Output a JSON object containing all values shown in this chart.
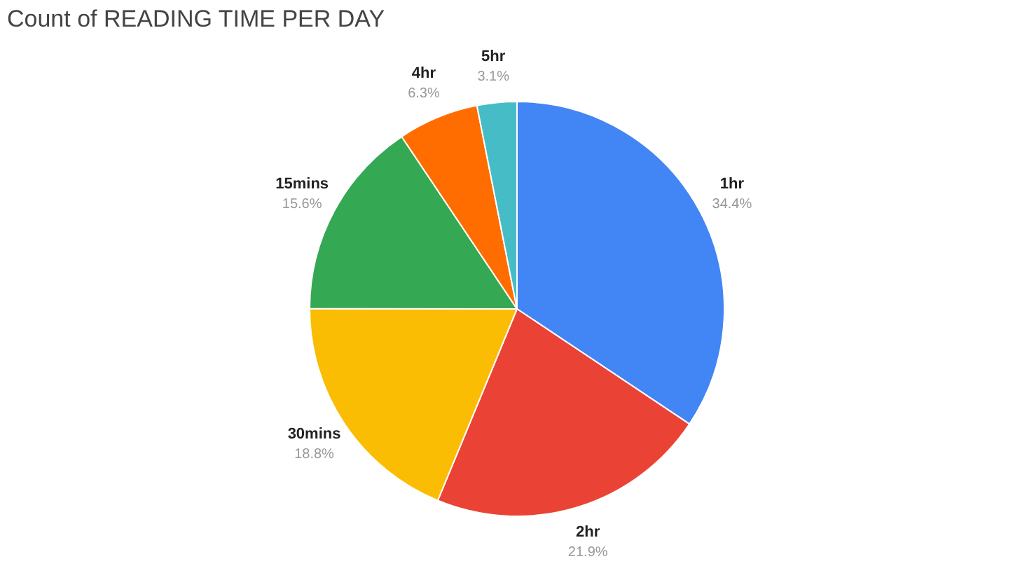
{
  "chart_data": {
    "type": "pie",
    "title": "Count of READING TIME PER DAY",
    "categories": [
      "1hr",
      "2hr",
      "30mins",
      "15mins",
      "4hr",
      "5hr"
    ],
    "values": [
      34.4,
      21.9,
      18.8,
      15.6,
      6.3,
      3.1
    ],
    "value_labels": [
      "34.4%",
      "21.9%",
      "18.8%",
      "15.6%",
      "6.3%",
      "3.1%"
    ],
    "colors": [
      "#4285f4",
      "#ea4335",
      "#fbbc04",
      "#34a853",
      "#ff6d01",
      "#46bdc6"
    ],
    "legend": false
  }
}
